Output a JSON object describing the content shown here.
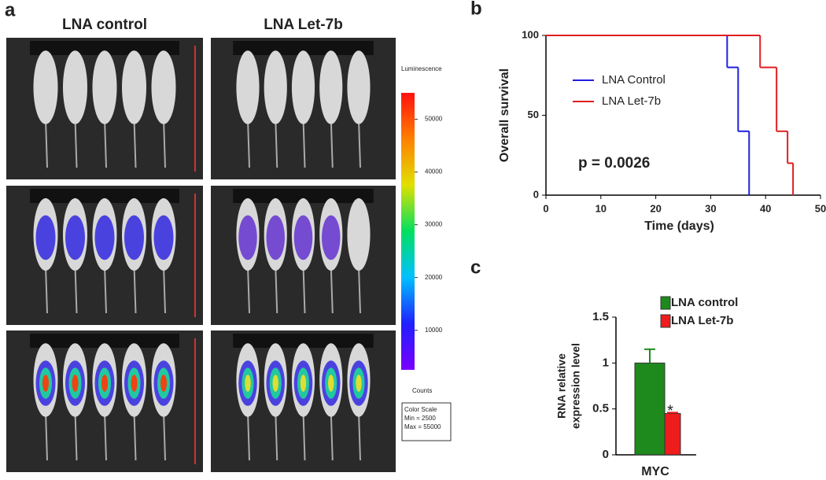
{
  "panel_a": {
    "label": "a",
    "columns": [
      "LNA control",
      "LNA Let-7b"
    ],
    "colorbar": {
      "title": "Luminescence",
      "ticks": [
        50000,
        40000,
        30000,
        20000,
        10000
      ],
      "units": "Counts",
      "box": [
        "Color Scale",
        "Min = 2500",
        "Max = 55000"
      ]
    }
  },
  "chart_data": [
    {
      "type": "step",
      "label": "b",
      "xlabel": "Time (days)",
      "ylabel": "Overall survival",
      "xlim": [
        0,
        50
      ],
      "xticks": [
        0,
        10,
        20,
        30,
        40,
        50
      ],
      "ylim": [
        0,
        100
      ],
      "yticks": [
        0,
        50,
        100
      ],
      "annotation": "p = 0.0026",
      "series": [
        {
          "name": "LNA Control",
          "color": "#1f1fe0",
          "x": [
            0,
            33,
            35,
            37
          ],
          "values": [
            100,
            80,
            40,
            0
          ]
        },
        {
          "name": "LNA Let-7b",
          "color": "#e01f1f",
          "x": [
            0,
            39,
            42,
            44,
            45
          ],
          "values": [
            100,
            80,
            40,
            20,
            0
          ]
        }
      ]
    },
    {
      "type": "bar",
      "label": "c",
      "ylabel": [
        "RNA relative",
        "expression level"
      ],
      "categories": [
        "MYC"
      ],
      "ylim": [
        0,
        1.5
      ],
      "yticks": [
        0,
        0.5,
        1,
        1.5
      ],
      "annotation": "*",
      "series": [
        {
          "name": "LNA control",
          "color": "#1e8a1e",
          "values": [
            1.0
          ],
          "errors": [
            0.15
          ]
        },
        {
          "name": "LNA Let-7b",
          "color": "#ee1c1c",
          "values": [
            0.45
          ],
          "errors": [
            0.01
          ]
        }
      ]
    }
  ]
}
